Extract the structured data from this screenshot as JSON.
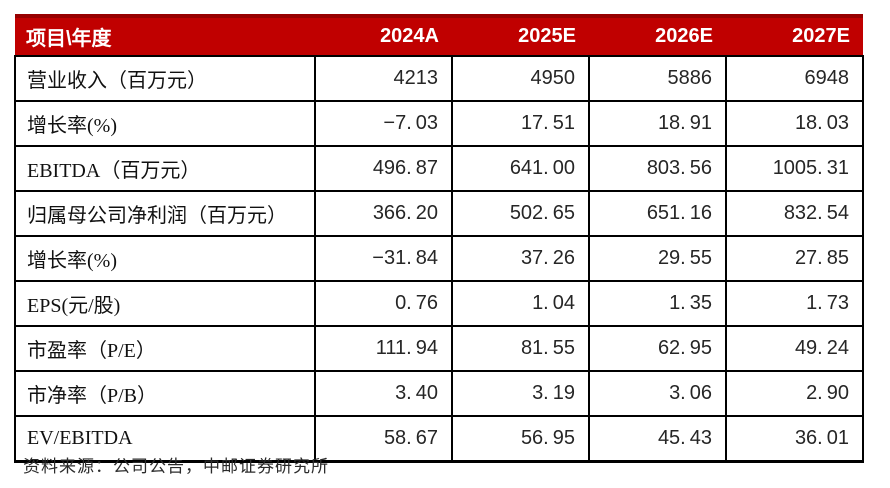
{
  "colors": {
    "header_bg": "#c00000",
    "header_top_rule": "#970000",
    "header_text": "#ffffff",
    "grid_border": "#000000",
    "body_text": "#262626"
  },
  "table": {
    "header": {
      "item_year_label": "项目\\年度",
      "years": [
        "2024A",
        "2025E",
        "2026E",
        "2027E"
      ]
    },
    "rows": [
      {
        "label": "营业收入（百万元）",
        "values": [
          "4213",
          "4950",
          "5886",
          "6948"
        ]
      },
      {
        "label": "增长率(%)",
        "values": [
          "-7.03",
          "17.51",
          "18.91",
          "18.03"
        ]
      },
      {
        "label": "EBITDA（百万元）",
        "values": [
          "496.87",
          "641.00",
          "803.56",
          "1005.31"
        ]
      },
      {
        "label": "归属母公司净利润（百万元）",
        "values": [
          "366.20",
          "502.65",
          "651.16",
          "832.54"
        ]
      },
      {
        "label": "增长率(%)",
        "values": [
          "-31.84",
          "37.26",
          "29.55",
          "27.85"
        ]
      },
      {
        "label": "EPS(元/股)",
        "values": [
          "0.76",
          "1.04",
          "1.35",
          "1.73"
        ]
      },
      {
        "label": "市盈率（P/E）",
        "values": [
          "111.94",
          "81.55",
          "62.95",
          "49.24"
        ]
      },
      {
        "label": "市净率（P/B）",
        "values": [
          "3.40",
          "3.19",
          "3.06",
          "2.90"
        ]
      },
      {
        "label": "EV/EBITDA",
        "values": [
          "58.67",
          "56.95",
          "45.43",
          "36.01"
        ]
      }
    ]
  },
  "footer": {
    "source_text": "资料来源：公司公告，中邮证券研究所"
  }
}
